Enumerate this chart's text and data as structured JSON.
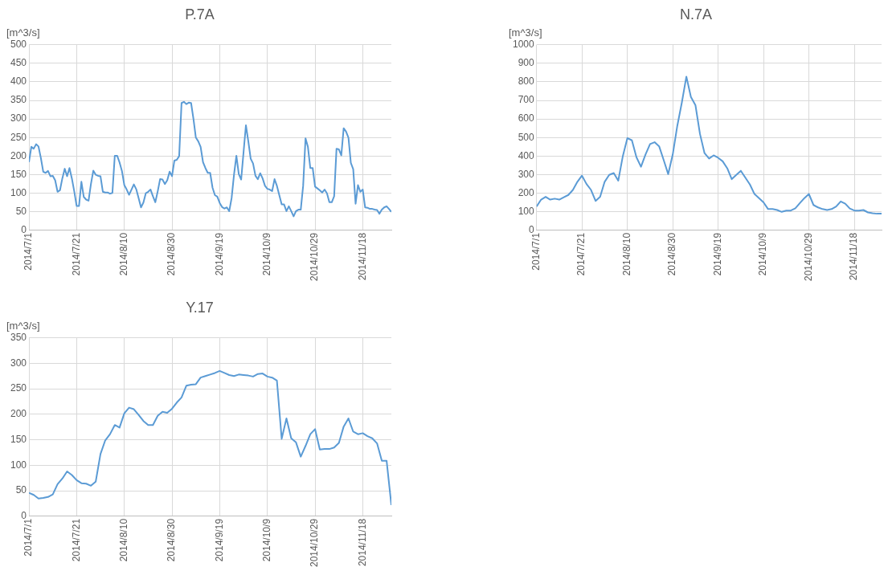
{
  "chart_data": [
    {
      "type": "line",
      "title": "P.7A",
      "ylabel": "[m^3/s]",
      "grid": true,
      "legend": false,
      "marker": "none",
      "x": [
        "2014-07-01",
        "2014-07-02",
        "2014-07-03",
        "2014-07-04",
        "2014-07-05",
        "2014-07-06",
        "2014-07-07",
        "2014-07-08",
        "2014-07-09",
        "2014-07-10",
        "2014-07-11",
        "2014-07-12",
        "2014-07-13",
        "2014-07-14",
        "2014-07-15",
        "2014-07-16",
        "2014-07-17",
        "2014-07-18",
        "2014-07-19",
        "2014-07-20",
        "2014-07-21",
        "2014-07-22",
        "2014-07-23",
        "2014-07-24",
        "2014-07-25",
        "2014-07-26",
        "2014-07-27",
        "2014-07-28",
        "2014-07-29",
        "2014-07-30",
        "2014-07-31",
        "2014-08-01",
        "2014-08-02",
        "2014-08-03",
        "2014-08-04",
        "2014-08-05",
        "2014-08-06",
        "2014-08-07",
        "2014-08-08",
        "2014-08-09",
        "2014-08-10",
        "2014-08-11",
        "2014-08-12",
        "2014-08-13",
        "2014-08-14",
        "2014-08-15",
        "2014-08-16",
        "2014-08-17",
        "2014-08-18",
        "2014-08-19",
        "2014-08-20",
        "2014-08-21",
        "2014-08-22",
        "2014-08-23",
        "2014-08-24",
        "2014-08-25",
        "2014-08-26",
        "2014-08-27",
        "2014-08-28",
        "2014-08-29",
        "2014-08-30",
        "2014-08-31",
        "2014-09-01",
        "2014-09-02",
        "2014-09-03",
        "2014-09-04",
        "2014-09-05",
        "2014-09-06",
        "2014-09-07",
        "2014-09-08",
        "2014-09-09",
        "2014-09-10",
        "2014-09-11",
        "2014-09-12",
        "2014-09-13",
        "2014-09-14",
        "2014-09-15",
        "2014-09-16",
        "2014-09-17",
        "2014-09-18",
        "2014-09-19",
        "2014-09-20",
        "2014-09-21",
        "2014-09-22",
        "2014-09-23",
        "2014-09-24",
        "2014-09-25",
        "2014-09-26",
        "2014-09-27",
        "2014-09-28",
        "2014-09-29",
        "2014-09-30",
        "2014-10-01",
        "2014-10-02",
        "2014-10-03",
        "2014-10-04",
        "2014-10-05",
        "2014-10-06",
        "2014-10-07",
        "2014-10-08",
        "2014-10-09",
        "2014-10-10",
        "2014-10-11",
        "2014-10-12",
        "2014-10-13",
        "2014-10-14",
        "2014-10-15",
        "2014-10-16",
        "2014-10-17",
        "2014-10-18",
        "2014-10-19",
        "2014-10-20",
        "2014-10-21",
        "2014-10-22",
        "2014-10-23",
        "2014-10-24",
        "2014-10-25",
        "2014-10-26",
        "2014-10-27",
        "2014-10-28",
        "2014-10-29",
        "2014-10-30",
        "2014-10-31",
        "2014-11-01",
        "2014-11-02",
        "2014-11-03",
        "2014-11-04",
        "2014-11-05",
        "2014-11-06",
        "2014-11-07",
        "2014-11-08",
        "2014-11-09",
        "2014-11-10",
        "2014-11-11",
        "2014-11-12",
        "2014-11-13",
        "2014-11-14",
        "2014-11-15",
        "2014-11-16",
        "2014-11-17",
        "2014-11-18",
        "2014-11-19",
        "2014-11-20",
        "2014-11-21",
        "2014-11-22",
        "2014-11-23",
        "2014-11-24",
        "2014-11-25",
        "2014-11-26",
        "2014-11-27",
        "2014-11-28",
        "2014-11-29",
        "2014-11-30"
      ],
      "series": [
        {
          "color": "#5b9bd5",
          "values": [
            184,
            225,
            220,
            232,
            226,
            195,
            158,
            155,
            160,
            146,
            147,
            135,
            104,
            108,
            140,
            166,
            146,
            168,
            140,
            105,
            66,
            66,
            131,
            90,
            83,
            80,
            125,
            161,
            150,
            147,
            146,
            104,
            102,
            102,
            99,
            101,
            201,
            201,
            183,
            160,
            122,
            110,
            96,
            110,
            124,
            111,
            87,
            62,
            75,
            100,
            104,
            110,
            92,
            76,
            105,
            138,
            137,
            125,
            135,
            158,
            146,
            188,
            190,
            200,
            343,
            346,
            340,
            344,
            343,
            300,
            250,
            240,
            225,
            184,
            168,
            155,
            155,
            115,
            95,
            91,
            74,
            63,
            59,
            62,
            52,
            87,
            150,
            201,
            152,
            137,
            210,
            283,
            240,
            193,
            180,
            147,
            138,
            154,
            140,
            120,
            112,
            110,
            106,
            138,
            120,
            95,
            70,
            70,
            52,
            65,
            52,
            38,
            52,
            56,
            56,
            120,
            248,
            225,
            168,
            168,
            118,
            113,
            108,
            102,
            110,
            100,
            76,
            76,
            92,
            220,
            218,
            202,
            275,
            266,
            250,
            182,
            165,
            72,
            122,
            104,
            110,
            62,
            61,
            58,
            58,
            56,
            55,
            45,
            56,
            62,
            65,
            58,
            50
          ]
        }
      ],
      "xlim": [
        "2014-07-01",
        "2014-11-30"
      ],
      "xticks": [
        {
          "value": "2014-07-01",
          "label": "2014/7/1"
        },
        {
          "value": "2014-07-21",
          "label": "2014/7/21"
        },
        {
          "value": "2014-08-10",
          "label": "2014/8/10"
        },
        {
          "value": "2014-08-30",
          "label": "2014/8/30"
        },
        {
          "value": "2014-09-19",
          "label": "2014/9/19"
        },
        {
          "value": "2014-10-09",
          "label": "2014/10/9"
        },
        {
          "value": "2014-10-29",
          "label": "2014/10/29"
        },
        {
          "value": "2014-11-18",
          "label": "2014/11/18"
        }
      ],
      "ylim": [
        0,
        500
      ],
      "yticks": [
        0,
        50,
        100,
        150,
        200,
        250,
        300,
        350,
        400,
        450,
        500
      ]
    },
    {
      "type": "line",
      "title": "N.7A",
      "ylabel": "[m^3/s]",
      "grid": true,
      "legend": false,
      "marker": "none",
      "x": [
        "2014-07-01",
        "2014-07-03",
        "2014-07-05",
        "2014-07-07",
        "2014-07-09",
        "2014-07-11",
        "2014-07-13",
        "2014-07-15",
        "2014-07-17",
        "2014-07-19",
        "2014-07-21",
        "2014-07-23",
        "2014-07-25",
        "2014-07-27",
        "2014-07-29",
        "2014-07-31",
        "2014-08-02",
        "2014-08-04",
        "2014-08-06",
        "2014-08-08",
        "2014-08-10",
        "2014-08-12",
        "2014-08-14",
        "2014-08-16",
        "2014-08-18",
        "2014-08-20",
        "2014-08-22",
        "2014-08-24",
        "2014-08-26",
        "2014-08-28",
        "2014-08-30",
        "2014-09-01",
        "2014-09-03",
        "2014-09-05",
        "2014-09-07",
        "2014-09-09",
        "2014-09-11",
        "2014-09-13",
        "2014-09-15",
        "2014-09-17",
        "2014-09-19",
        "2014-09-21",
        "2014-09-23",
        "2014-09-25",
        "2014-09-27",
        "2014-09-29",
        "2014-10-01",
        "2014-10-03",
        "2014-10-05",
        "2014-10-07",
        "2014-10-09",
        "2014-10-11",
        "2014-10-13",
        "2014-10-15",
        "2014-10-17",
        "2014-10-19",
        "2014-10-21",
        "2014-10-23",
        "2014-10-25",
        "2014-10-27",
        "2014-10-29",
        "2014-10-31",
        "2014-11-02",
        "2014-11-04",
        "2014-11-06",
        "2014-11-08",
        "2014-11-10",
        "2014-11-12",
        "2014-11-14",
        "2014-11-16",
        "2014-11-18",
        "2014-11-20",
        "2014-11-22",
        "2014-11-24",
        "2014-11-26",
        "2014-11-28",
        "2014-11-30"
      ],
      "series": [
        {
          "color": "#5b9bd5",
          "values": [
            129,
            166,
            181,
            166,
            171,
            166,
            179,
            191,
            218,
            262,
            295,
            250,
            218,
            159,
            181,
            262,
            299,
            309,
            268,
            400,
            497,
            485,
            394,
            343,
            409,
            465,
            475,
            453,
            379,
            303,
            409,
            563,
            688,
            828,
            718,
            674,
            519,
            416,
            387,
            404,
            391,
            372,
            335,
            276,
            299,
            321,
            284,
            247,
            196,
            174,
            151,
            115,
            115,
            110,
            100,
            107,
            107,
            119,
            147,
            174,
            196,
            137,
            124,
            115,
            110,
            115,
            129,
            156,
            144,
            118,
            107,
            107,
            110,
            97,
            93,
            90,
            90
          ]
        }
      ],
      "xlim": [
        "2014-07-01",
        "2014-11-30"
      ],
      "xticks": [
        {
          "value": "2014-07-01",
          "label": "2014/7/1"
        },
        {
          "value": "2014-07-21",
          "label": "2014/7/21"
        },
        {
          "value": "2014-08-10",
          "label": "2014/8/10"
        },
        {
          "value": "2014-08-30",
          "label": "2014/8/30"
        },
        {
          "value": "2014-09-19",
          "label": "2014/9/19"
        },
        {
          "value": "2014-10-09",
          "label": "2014/10/9"
        },
        {
          "value": "2014-10-29",
          "label": "2014/10/29"
        },
        {
          "value": "2014-11-18",
          "label": "2014/11/18"
        }
      ],
      "ylim": [
        0,
        1000
      ],
      "yticks": [
        0,
        100,
        200,
        300,
        400,
        500,
        600,
        700,
        800,
        900,
        1000
      ]
    },
    {
      "type": "line",
      "title": "Y.17",
      "ylabel": "[m^3/s]",
      "grid": true,
      "legend": false,
      "marker": "none",
      "x": [
        "2014-07-01",
        "2014-07-03",
        "2014-07-05",
        "2014-07-07",
        "2014-07-09",
        "2014-07-11",
        "2014-07-13",
        "2014-07-15",
        "2014-07-17",
        "2014-07-19",
        "2014-07-21",
        "2014-07-23",
        "2014-07-25",
        "2014-07-27",
        "2014-07-29",
        "2014-07-31",
        "2014-08-02",
        "2014-08-04",
        "2014-08-06",
        "2014-08-08",
        "2014-08-10",
        "2014-08-12",
        "2014-08-14",
        "2014-08-16",
        "2014-08-18",
        "2014-08-20",
        "2014-08-22",
        "2014-08-24",
        "2014-08-26",
        "2014-08-28",
        "2014-08-30",
        "2014-09-01",
        "2014-09-03",
        "2014-09-05",
        "2014-09-07",
        "2014-09-09",
        "2014-09-11",
        "2014-09-13",
        "2014-09-15",
        "2014-09-17",
        "2014-09-19",
        "2014-09-21",
        "2014-09-23",
        "2014-09-25",
        "2014-09-27",
        "2014-09-29",
        "2014-10-01",
        "2014-10-03",
        "2014-10-05",
        "2014-10-07",
        "2014-10-09",
        "2014-10-11",
        "2014-10-13",
        "2014-10-15",
        "2014-10-17",
        "2014-10-19",
        "2014-10-21",
        "2014-10-23",
        "2014-10-25",
        "2014-10-27",
        "2014-10-29",
        "2014-10-31",
        "2014-11-02",
        "2014-11-04",
        "2014-11-06",
        "2014-11-08",
        "2014-11-10",
        "2014-11-12",
        "2014-11-14",
        "2014-11-16",
        "2014-11-18",
        "2014-11-20",
        "2014-11-22",
        "2014-11-24",
        "2014-11-26",
        "2014-11-28",
        "2014-11-30"
      ],
      "series": [
        {
          "color": "#5b9bd5",
          "values": [
            46,
            42,
            35,
            36,
            38,
            43,
            63,
            74,
            88,
            81,
            71,
            65,
            64,
            60,
            68,
            122,
            149,
            161,
            179,
            174,
            202,
            213,
            210,
            199,
            187,
            179,
            179,
            197,
            205,
            203,
            211,
            223,
            233,
            256,
            258,
            259,
            272,
            275,
            278,
            281,
            285,
            281,
            277,
            275,
            278,
            277,
            276,
            274,
            279,
            280,
            274,
            272,
            266,
            152,
            192,
            153,
            145,
            117,
            138,
            161,
            171,
            131,
            132,
            132,
            135,
            144,
            176,
            192,
            166,
            161,
            163,
            157,
            153,
            143,
            109,
            109,
            22
          ]
        }
      ],
      "xlim": [
        "2014-07-01",
        "2014-11-30"
      ],
      "xticks": [
        {
          "value": "2014-07-01",
          "label": "2014/7/1"
        },
        {
          "value": "2014-07-21",
          "label": "2014/7/21"
        },
        {
          "value": "2014-08-10",
          "label": "2014/8/10"
        },
        {
          "value": "2014-08-30",
          "label": "2014/8/30"
        },
        {
          "value": "2014-09-19",
          "label": "2014/9/19"
        },
        {
          "value": "2014-10-09",
          "label": "2014/10/9"
        },
        {
          "value": "2014-10-29",
          "label": "2014/10/29"
        },
        {
          "value": "2014-11-18",
          "label": "2014/11/18"
        }
      ],
      "ylim": [
        0,
        350
      ],
      "yticks": [
        0,
        50,
        100,
        150,
        200,
        250,
        300,
        350
      ]
    }
  ]
}
